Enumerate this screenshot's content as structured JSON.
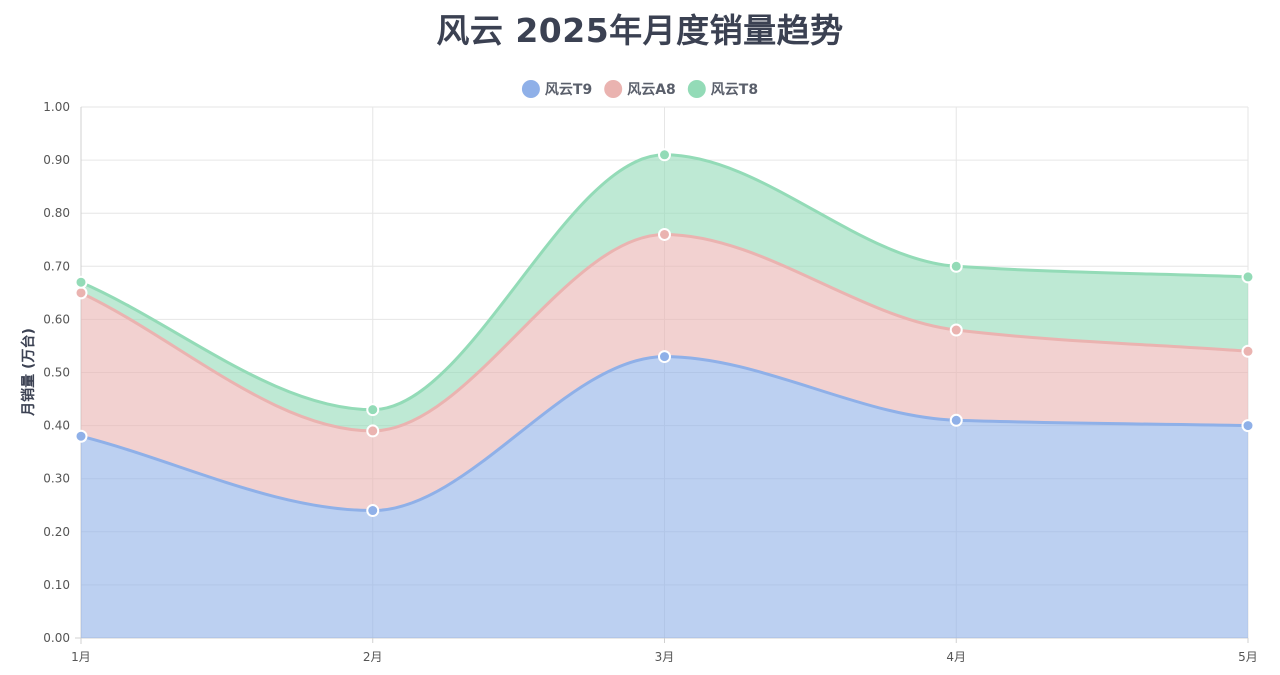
{
  "chart_data": {
    "type": "area",
    "stacked": true,
    "title": "风云 2025年月度销量趋势",
    "ylabel": "月销量 (万台)",
    "xlabel": "",
    "categories": [
      "1月",
      "2月",
      "3月",
      "4月",
      "5月"
    ],
    "ylim": [
      0,
      1.0
    ],
    "yticks": [
      "0.00",
      "0.10",
      "0.20",
      "0.30",
      "0.40",
      "0.50",
      "0.60",
      "0.70",
      "0.80",
      "0.90",
      "1.00"
    ],
    "grid": true,
    "legend_position": "top-center",
    "series": [
      {
        "name": "风云T9",
        "values": [
          0.38,
          0.24,
          0.53,
          0.41,
          0.4
        ],
        "color": "#8fb0e8"
      },
      {
        "name": "风云A8",
        "values": [
          0.27,
          0.15,
          0.23,
          0.17,
          0.14
        ],
        "color": "#eab3b0"
      },
      {
        "name": "风云T8",
        "values": [
          0.02,
          0.04,
          0.15,
          0.12,
          0.14
        ],
        "color": "#93dbb7"
      }
    ]
  }
}
